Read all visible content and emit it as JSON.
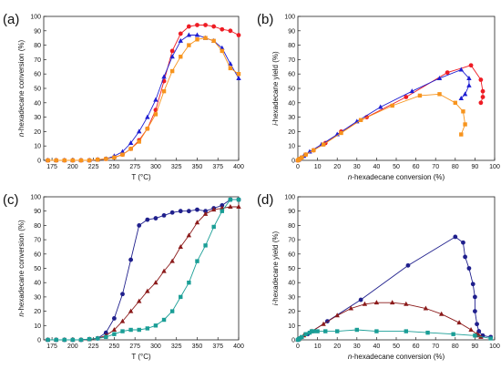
{
  "chart_data": [
    {
      "panel_label": "(a)",
      "type": "line",
      "xlabel": "T (°C)",
      "ylabel": "n-hexadecane conversion (%)",
      "xlim": [
        165,
        400
      ],
      "ylim": [
        0,
        100
      ],
      "xticks": [
        175,
        200,
        225,
        250,
        275,
        300,
        325,
        350,
        375,
        400
      ],
      "yticks": [
        0,
        10,
        20,
        30,
        40,
        50,
        60,
        70,
        80,
        90,
        100
      ],
      "series": [
        {
          "marker": "circle",
          "color": "#ee1c24",
          "x": [
            170,
            180,
            190,
            200,
            210,
            220,
            230,
            240,
            250,
            260,
            270,
            280,
            290,
            300,
            310,
            320,
            330,
            340,
            350,
            360,
            370,
            380,
            390,
            400
          ],
          "y": [
            0,
            0,
            0,
            0,
            0,
            0,
            0.5,
            1,
            2,
            4,
            8,
            14,
            22,
            35,
            55,
            76,
            88,
            93,
            94,
            94,
            93,
            91,
            90,
            87
          ]
        },
        {
          "marker": "triangle",
          "color": "#1e1ed2",
          "x": [
            170,
            180,
            190,
            200,
            210,
            220,
            230,
            240,
            250,
            260,
            270,
            280,
            290,
            300,
            310,
            320,
            330,
            340,
            350,
            360,
            370,
            380,
            390,
            400
          ],
          "y": [
            0,
            0,
            0,
            0,
            0,
            0,
            0.5,
            1,
            3,
            6,
            12,
            20,
            30,
            42,
            58,
            72,
            83,
            87,
            87,
            85,
            83,
            78,
            67,
            57
          ]
        },
        {
          "marker": "square",
          "color": "#f7941d",
          "x": [
            170,
            180,
            190,
            200,
            210,
            220,
            230,
            240,
            250,
            260,
            270,
            280,
            290,
            300,
            310,
            320,
            330,
            340,
            350,
            360,
            370,
            380,
            390,
            400
          ],
          "y": [
            0,
            0,
            0,
            0,
            0,
            0,
            0.5,
            1,
            2,
            4,
            8,
            13,
            22,
            32,
            48,
            62,
            72,
            80,
            84,
            85,
            83,
            76,
            64,
            60
          ]
        }
      ]
    },
    {
      "panel_label": "(b)",
      "type": "line",
      "xlabel": "n-hexadecane conversion (%)",
      "ylabel": "i-hexadecane yield (%)",
      "xlim": [
        0,
        100
      ],
      "ylim": [
        0,
        100
      ],
      "xticks": [
        0,
        10,
        20,
        30,
        40,
        50,
        60,
        70,
        80,
        90,
        100
      ],
      "yticks": [
        0,
        10,
        20,
        30,
        40,
        50,
        60,
        70,
        80,
        90,
        100
      ],
      "series": [
        {
          "marker": "circle",
          "color": "#ee1c24",
          "x": [
            0,
            0.5,
            1,
            2,
            4,
            8,
            14,
            22,
            35,
            55,
            76,
            88,
            93,
            94,
            94,
            93
          ],
          "y": [
            0,
            0.5,
            1,
            2,
            4,
            7,
            12,
            20,
            30,
            44,
            61,
            66,
            56,
            48,
            44,
            40
          ]
        },
        {
          "marker": "triangle",
          "color": "#1e1ed2",
          "x": [
            0,
            0.5,
            1,
            3,
            6,
            12,
            20,
            30,
            42,
            58,
            72,
            83,
            87,
            87,
            85,
            83
          ],
          "y": [
            0,
            0.5,
            1,
            3,
            6,
            11,
            18,
            27,
            37,
            48,
            57,
            63,
            57,
            52,
            46,
            43
          ]
        },
        {
          "marker": "square",
          "color": "#f7941d",
          "x": [
            0,
            0.5,
            1,
            2,
            4,
            8,
            13,
            22,
            32,
            48,
            62,
            72,
            80,
            84,
            85,
            83
          ],
          "y": [
            0,
            0.5,
            1,
            2,
            4,
            7,
            11,
            19,
            28,
            38,
            45,
            46,
            40,
            34,
            25,
            18
          ]
        }
      ]
    },
    {
      "panel_label": "(c)",
      "type": "line",
      "xlabel": "T (°C)",
      "ylabel": "n-hexadecane conversion (%)",
      "xlim": [
        165,
        400
      ],
      "ylim": [
        0,
        100
      ],
      "xticks": [
        175,
        200,
        225,
        250,
        275,
        300,
        325,
        350,
        375,
        400
      ],
      "yticks": [
        0,
        10,
        20,
        30,
        40,
        50,
        60,
        70,
        80,
        90,
        100
      ],
      "series": [
        {
          "marker": "circle",
          "color": "#1f1f8c",
          "x": [
            170,
            180,
            190,
            200,
            210,
            220,
            230,
            240,
            250,
            260,
            270,
            280,
            290,
            300,
            310,
            320,
            330,
            340,
            350,
            360,
            370,
            380,
            390,
            400
          ],
          "y": [
            0,
            0,
            0,
            0,
            0,
            0.5,
            1,
            5,
            15,
            32,
            56,
            80,
            84,
            85,
            87,
            89,
            90,
            90,
            91,
            90,
            92,
            94,
            98,
            98
          ]
        },
        {
          "marker": "triangle",
          "color": "#8b1a1a",
          "x": [
            170,
            180,
            190,
            200,
            210,
            220,
            230,
            240,
            250,
            260,
            270,
            280,
            290,
            300,
            310,
            320,
            330,
            340,
            350,
            360,
            370,
            380,
            390,
            400
          ],
          "y": [
            0,
            0,
            0,
            0,
            0,
            0.5,
            1,
            3,
            7,
            13,
            20,
            27,
            34,
            40,
            48,
            55,
            65,
            73,
            82,
            88,
            91,
            92,
            93,
            93
          ]
        },
        {
          "marker": "square",
          "color": "#1a9e96",
          "x": [
            170,
            180,
            190,
            200,
            210,
            220,
            230,
            240,
            250,
            260,
            270,
            280,
            290,
            300,
            310,
            320,
            330,
            340,
            350,
            360,
            370,
            380,
            390,
            400
          ],
          "y": [
            0,
            0,
            0,
            0,
            0,
            0.5,
            1,
            2,
            4,
            6,
            7,
            7,
            8,
            10,
            14,
            20,
            30,
            40,
            55,
            66,
            79,
            90,
            98,
            98
          ]
        }
      ]
    },
    {
      "panel_label": "(d)",
      "type": "line",
      "xlabel": "n-hexadecane conversion (%)",
      "ylabel": "i-hexadecane yield (%)",
      "xlim": [
        0,
        100
      ],
      "ylim": [
        0,
        100
      ],
      "xticks": [
        0,
        10,
        20,
        30,
        40,
        50,
        60,
        70,
        80,
        90,
        100
      ],
      "yticks": [
        0,
        10,
        20,
        30,
        40,
        50,
        60,
        70,
        80,
        90,
        100
      ],
      "series": [
        {
          "marker": "circle",
          "color": "#1f1f8c",
          "x": [
            0,
            0.5,
            1,
            5,
            15,
            32,
            56,
            80,
            84,
            85,
            87,
            89,
            90,
            90,
            91,
            92,
            94,
            98
          ],
          "y": [
            0,
            0.5,
            1,
            4,
            13,
            28,
            52,
            72,
            68,
            58,
            50,
            39,
            30,
            20,
            11,
            6,
            3,
            2
          ]
        },
        {
          "marker": "triangle",
          "color": "#8b1a1a",
          "x": [
            0,
            0.5,
            1,
            3,
            7,
            13,
            20,
            27,
            34,
            40,
            48,
            55,
            65,
            73,
            82,
            88,
            91,
            92,
            93
          ],
          "y": [
            0,
            0.5,
            1,
            3,
            6,
            11,
            17,
            22,
            25,
            26,
            26,
            25,
            22,
            18,
            12,
            7,
            4,
            3,
            2
          ]
        },
        {
          "marker": "square",
          "color": "#1a9e96",
          "x": [
            0,
            0.5,
            1,
            2,
            4,
            6,
            7,
            8,
            10,
            14,
            20,
            30,
            40,
            55,
            66,
            79,
            90,
            98
          ],
          "y": [
            0,
            0.5,
            1,
            2,
            4,
            5,
            6,
            6,
            6,
            6,
            6,
            7,
            6,
            6,
            5,
            4,
            3,
            1
          ]
        }
      ]
    }
  ]
}
